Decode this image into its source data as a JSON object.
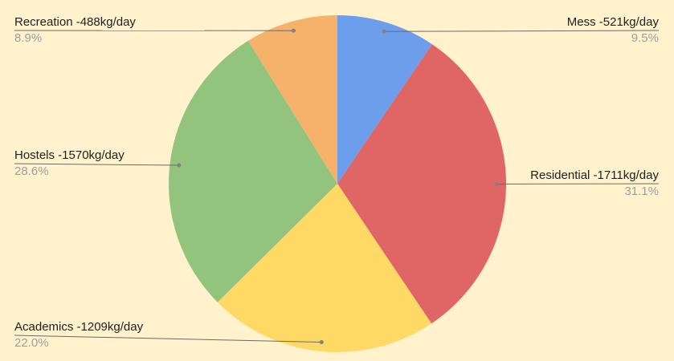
{
  "background_color": "#fff2cc",
  "chart_data": {
    "type": "pie",
    "title": "",
    "unit": "kg/day",
    "direction": "clockwise",
    "start_angle_deg": 0,
    "legend_position": "outside-callout-labels",
    "label_color": "#212121",
    "pct_color": "#9e9e9e",
    "leader_line_color": "#6b6b66",
    "leader_dot_color": "#82827c",
    "slices": [
      {
        "name": "Mess",
        "value": 521,
        "pct": 9.5,
        "label": "Mess -521kg/day",
        "pct_label": "9.5%",
        "color": "#6d9eeb"
      },
      {
        "name": "Residential",
        "value": 1711,
        "pct": 31.1,
        "label": "Residential -1711kg/day",
        "pct_label": "31.1%",
        "color": "#e06666"
      },
      {
        "name": "Academics",
        "value": 1209,
        "pct": 22.0,
        "label": "Academics -1209kg/day",
        "pct_label": "22.0%",
        "color": "#ffd966"
      },
      {
        "name": "Hostels",
        "value": 1570,
        "pct": 28.6,
        "label": "Hostels -1570kg/day",
        "pct_label": "28.6%",
        "color": "#93c47d"
      },
      {
        "name": "Recreation",
        "value": 488,
        "pct": 8.9,
        "label": "Recreation -488kg/day",
        "pct_label": "8.9%",
        "color": "#f6b26b"
      }
    ]
  }
}
